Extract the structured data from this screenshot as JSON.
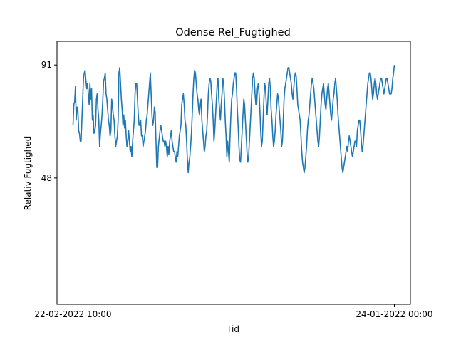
{
  "chart_data": {
    "type": "line",
    "title": "Odense Rel_Fugtighed",
    "xlabel": "Tid",
    "ylabel": "Relativ Fugtighed",
    "x_ticks": [
      "22-02-2022 10:00",
      "24-01-2022 00:00"
    ],
    "y_ticks": [
      48,
      91
    ],
    "ylim": [
      0,
      100
    ],
    "grid": false,
    "legend": "none",
    "line_color": "#1f77b4",
    "series": [
      {
        "values": [
          68,
          76,
          77,
          83,
          70,
          75,
          74,
          66,
          65,
          62,
          62,
          70,
          78,
          86,
          88,
          89,
          85,
          82,
          84,
          80,
          76,
          84,
          78,
          82,
          70,
          72,
          65,
          66,
          68,
          78,
          80,
          74,
          70,
          60,
          65,
          68,
          72,
          78,
          85,
          86,
          88,
          80,
          78,
          74,
          70,
          68,
          64,
          66,
          78,
          75,
          72,
          70,
          64,
          60,
          62,
          64,
          70,
          88,
          90,
          84,
          78,
          74,
          68,
          72,
          67,
          70,
          64,
          60,
          62,
          66,
          62,
          58,
          60,
          56,
          62,
          66,
          70,
          80,
          84,
          84,
          78,
          72,
          68,
          69,
          70,
          64,
          64,
          60,
          62,
          64,
          66,
          70,
          72,
          76,
          80,
          84,
          88,
          80,
          72,
          68,
          70,
          75,
          73,
          62,
          52,
          52,
          60,
          63,
          66,
          68,
          66,
          64,
          62,
          62,
          60,
          62,
          60,
          56,
          60,
          57,
          62,
          64,
          66,
          62,
          60,
          58,
          58,
          56,
          54,
          58,
          56,
          60,
          64,
          66,
          68,
          76,
          78,
          80,
          76,
          70,
          68,
          62,
          55,
          50,
          54,
          56,
          60,
          65,
          72,
          80,
          86,
          89,
          88,
          84,
          80,
          78,
          74,
          72,
          76,
          78,
          70,
          66,
          62,
          58,
          60,
          64,
          66,
          72,
          80,
          84,
          86,
          85,
          80,
          76,
          70,
          62,
          66,
          72,
          78,
          84,
          86,
          78,
          74,
          70,
          76,
          80,
          86,
          84,
          78,
          70,
          64,
          56,
          62,
          58,
          54,
          64,
          72,
          78,
          80,
          84,
          86,
          88,
          88,
          82,
          74,
          68,
          60,
          55,
          54,
          60,
          66,
          72,
          78,
          76,
          70,
          64,
          58,
          54,
          56,
          62,
          68,
          74,
          80,
          86,
          88,
          86,
          80,
          76,
          76,
          82,
          84,
          80,
          74,
          66,
          60,
          62,
          70,
          78,
          84,
          82,
          76,
          72,
          78,
          84,
          86,
          82,
          74,
          70,
          64,
          60,
          62,
          66,
          72,
          76,
          80,
          78,
          74,
          70,
          66,
          60,
          62,
          70,
          78,
          82,
          84,
          86,
          88,
          90,
          90,
          88,
          86,
          84,
          80,
          78,
          82,
          86,
          88,
          87,
          82,
          76,
          74,
          72,
          70,
          64,
          58,
          54,
          52,
          50,
          52,
          56,
          60,
          66,
          70,
          72,
          76,
          80,
          84,
          86,
          84,
          82,
          78,
          74,
          70,
          66,
          62,
          60,
          64,
          70,
          76,
          80,
          82,
          84,
          80,
          76,
          74,
          78,
          82,
          84,
          80,
          76,
          72,
          70,
          74,
          78,
          80,
          84,
          86,
          82,
          78,
          72,
          68,
          64,
          60,
          56,
          52,
          50,
          52,
          54,
          56,
          58,
          60,
          58,
          62,
          64,
          62,
          60,
          58,
          56,
          58,
          60,
          62,
          62,
          60,
          66,
          68,
          70,
          70,
          66,
          62,
          58,
          60,
          64,
          68,
          72,
          76,
          80,
          84,
          86,
          88,
          88,
          86,
          82,
          78,
          80,
          84,
          86,
          84,
          80,
          78,
          80,
          82,
          84,
          86,
          86,
          84,
          82,
          80,
          82,
          84,
          86,
          86,
          84,
          82,
          80,
          80,
          80,
          82,
          86,
          88,
          91
        ]
      }
    ]
  }
}
